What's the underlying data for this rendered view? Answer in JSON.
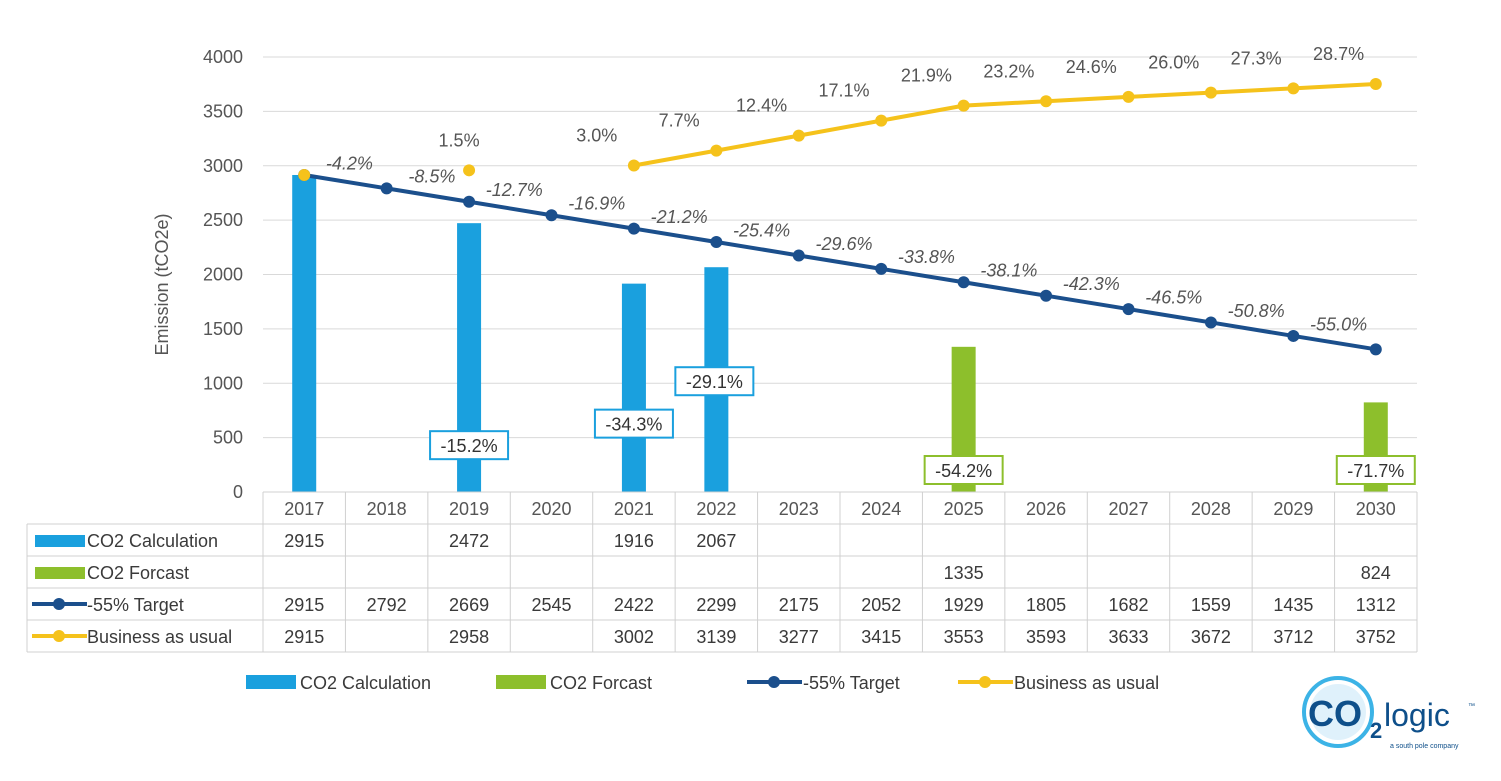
{
  "chart_data": {
    "type": "bar",
    "ylabel": "Emission (tCO2e)",
    "ylim": [
      0,
      4000
    ],
    "yticks": [
      0,
      500,
      1000,
      1500,
      2000,
      2500,
      3000,
      3500,
      4000
    ],
    "categories": [
      "2017",
      "2018",
      "2019",
      "2020",
      "2021",
      "2022",
      "2023",
      "2024",
      "2025",
      "2026",
      "2027",
      "2028",
      "2029",
      "2030"
    ],
    "series": [
      {
        "name": "CO2 Calculation",
        "kind": "bar",
        "color": "#1aa0de",
        "values": [
          2915,
          null,
          2472,
          null,
          1916,
          2067,
          null,
          null,
          null,
          null,
          null,
          null,
          null,
          null
        ]
      },
      {
        "name": "CO2 Forcast",
        "kind": "bar",
        "color": "#8dbf2c",
        "values": [
          null,
          null,
          null,
          null,
          null,
          null,
          null,
          null,
          1335,
          null,
          null,
          null,
          null,
          824
        ]
      },
      {
        "name": "-55% Target",
        "kind": "line",
        "color": "#1b4f8c",
        "values": [
          2915,
          2792,
          2669,
          2545,
          2422,
          2299,
          2175,
          2052,
          1929,
          1805,
          1682,
          1559,
          1435,
          1312
        ]
      },
      {
        "name": "Business as usual",
        "kind": "line",
        "color": "#f5c21b",
        "values": [
          2915,
          null,
          2958,
          null,
          3002,
          3139,
          3277,
          3415,
          3553,
          3593,
          3633,
          3672,
          3712,
          3752
        ]
      }
    ],
    "target_labels": [
      "-4.2%",
      "-8.5%",
      "-12.7%",
      "-16.9%",
      "-21.2%",
      "-25.4%",
      "-29.6%",
      "-33.8%",
      "-38.1%",
      "-42.3%",
      "-46.5%",
      "-50.8%",
      "-55.0%"
    ],
    "target_label_years": [
      "2018",
      "2019",
      "2020",
      "2021",
      "2022",
      "2023",
      "2024",
      "2025",
      "2026",
      "2027",
      "2028",
      "2029",
      "2030"
    ],
    "bau_labels": [
      "1.5%",
      "3.0%",
      "7.7%",
      "12.4%",
      "17.1%",
      "21.9%",
      "23.2%",
      "24.6%",
      "26.0%",
      "27.3%",
      "28.7%"
    ],
    "bau_label_years": [
      "2019",
      "2021",
      "2022",
      "2023",
      "2024",
      "2025",
      "2026",
      "2027",
      "2028",
      "2029",
      "2030"
    ],
    "callouts": [
      {
        "year": "2019",
        "text": "-15.2%",
        "color": "#1aa0de"
      },
      {
        "year": "2021",
        "text": "-34.3%",
        "color": "#1aa0de"
      },
      {
        "year": "2022",
        "text": "-29.1%",
        "color": "#1aa0de"
      },
      {
        "year": "2025",
        "text": "-54.2%",
        "color": "#8dbf2c"
      },
      {
        "year": "2030",
        "text": "-71.7%",
        "color": "#8dbf2c"
      }
    ],
    "legend_position": "bottom"
  },
  "logo": {
    "main": "CO",
    "sub2": "2",
    "word": "logic",
    "tm": "™",
    "tagline": "a south pole company"
  }
}
